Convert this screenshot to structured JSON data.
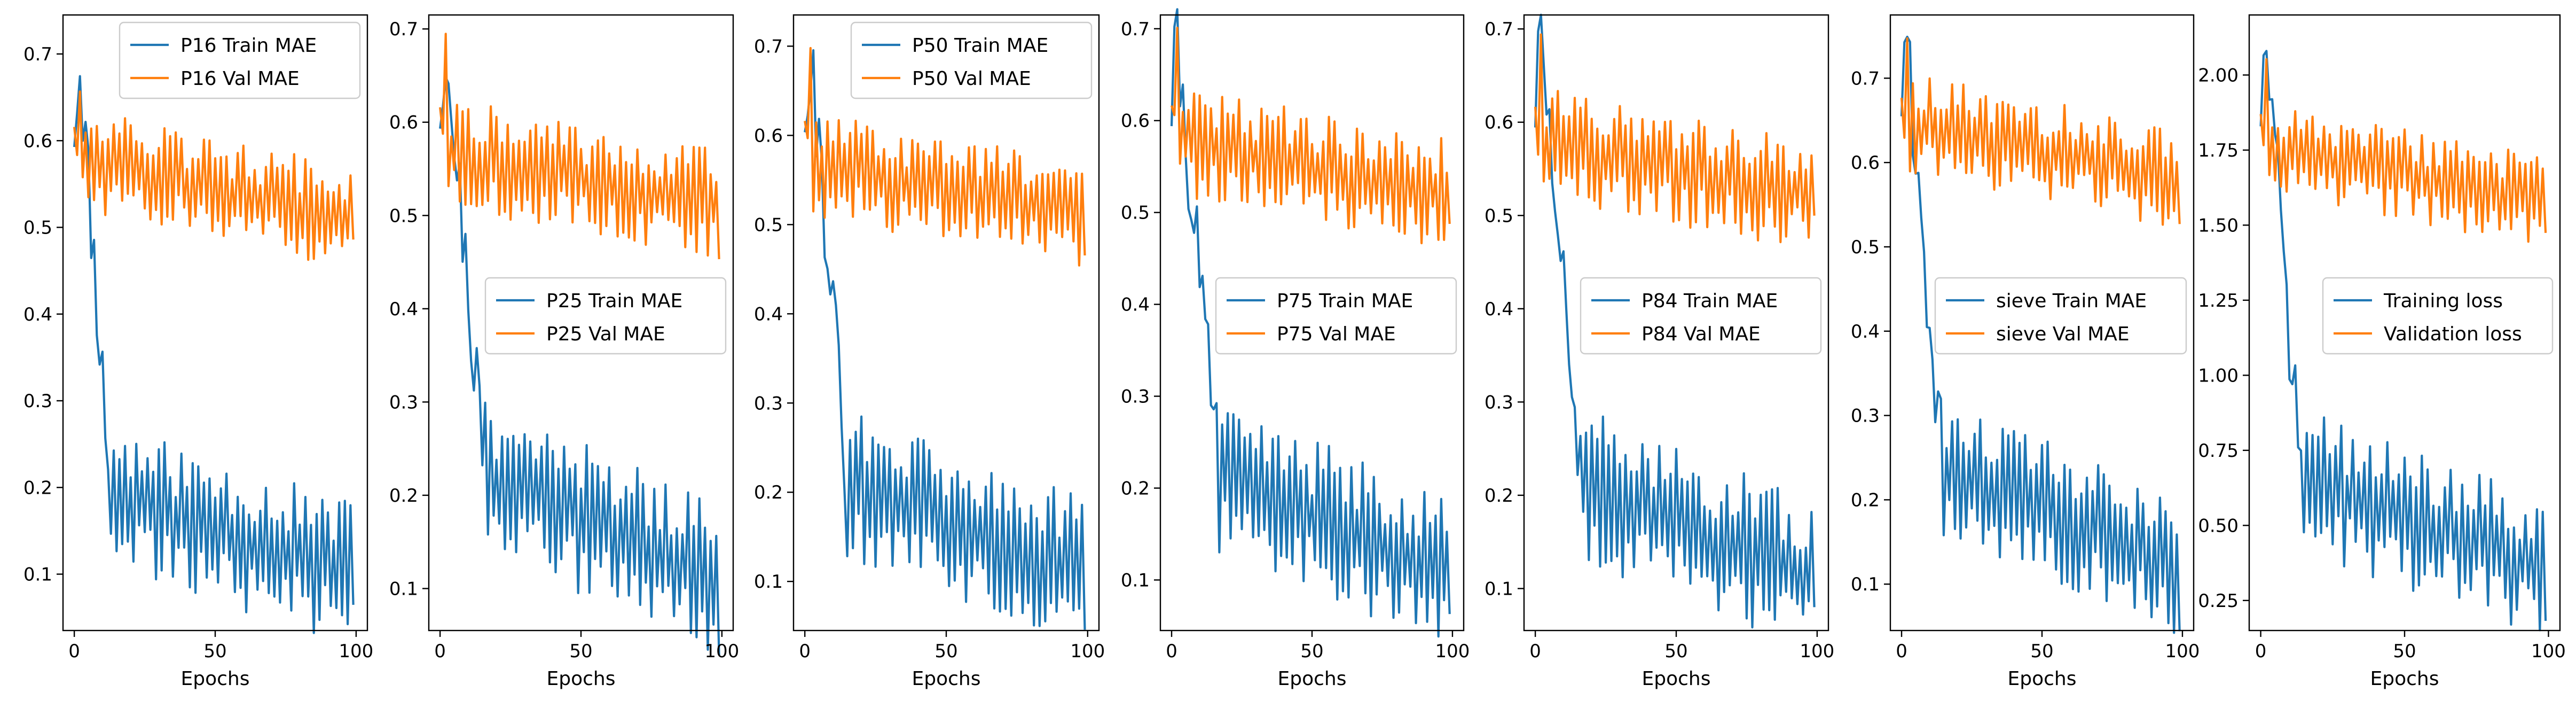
{
  "colors": {
    "train": "#1f77b4",
    "val": "#ff7f0e"
  },
  "chart_data": [
    {
      "type": "line",
      "xlabel": "Epochs",
      "ylabel": "",
      "xlim": [
        -4,
        104
      ],
      "ylim": [
        0.035,
        0.745
      ],
      "xticks": [
        0,
        50,
        100
      ],
      "yticks": [
        0.1,
        0.2,
        0.3,
        0.4,
        0.5,
        0.6,
        0.7
      ],
      "legend_position": "upper right",
      "series": [
        {
          "name": "P16 Train MAE",
          "color": "#1f77b4",
          "start": 0.62,
          "peak": 0.69,
          "drop_epoch": 13,
          "mid": 0.19,
          "end": 0.1,
          "amp": 0.07,
          "seed": 11
        },
        {
          "name": "P16 Val MAE",
          "color": "#ff7f0e",
          "start": 0.59,
          "peak": 0.64,
          "drop_epoch": 0,
          "mid": 0.58,
          "end": 0.51,
          "amp": 0.05,
          "seed": 12
        }
      ]
    },
    {
      "type": "line",
      "xlabel": "Epochs",
      "ylabel": "",
      "xlim": [
        -4,
        104
      ],
      "ylim": [
        0.055,
        0.715
      ],
      "xticks": [
        0,
        50,
        100
      ],
      "yticks": [
        0.1,
        0.2,
        0.3,
        0.4,
        0.5,
        0.6,
        0.7
      ],
      "legend_position": "center right",
      "series": [
        {
          "name": "P25 Train MAE",
          "color": "#1f77b4",
          "start": 0.62,
          "peak": 0.68,
          "drop_epoch": 16,
          "mid": 0.22,
          "end": 0.11,
          "amp": 0.07,
          "seed": 21
        },
        {
          "name": "P25 Val MAE",
          "color": "#ff7f0e",
          "start": 0.59,
          "peak": 0.64,
          "drop_epoch": 0,
          "mid": 0.57,
          "end": 0.51,
          "amp": 0.05,
          "seed": 22
        }
      ]
    },
    {
      "type": "line",
      "xlabel": "Epochs",
      "ylabel": "",
      "xlim": [
        -4,
        104
      ],
      "ylim": [
        0.045,
        0.735
      ],
      "xticks": [
        0,
        50,
        100
      ],
      "yticks": [
        0.1,
        0.2,
        0.3,
        0.4,
        0.5,
        0.6,
        0.7
      ],
      "legend_position": "upper right",
      "series": [
        {
          "name": "P50 Train MAE",
          "color": "#1f77b4",
          "start": 0.63,
          "peak": 0.7,
          "drop_epoch": 15,
          "mid": 0.21,
          "end": 0.11,
          "amp": 0.07,
          "seed": 31
        },
        {
          "name": "P50 Val MAE",
          "color": "#ff7f0e",
          "start": 0.59,
          "peak": 0.65,
          "drop_epoch": 0,
          "mid": 0.57,
          "end": 0.51,
          "amp": 0.05,
          "seed": 32
        }
      ]
    },
    {
      "type": "line",
      "xlabel": "Epochs",
      "ylabel": "",
      "xlim": [
        -4,
        104
      ],
      "ylim": [
        0.045,
        0.715
      ],
      "xticks": [
        0,
        50,
        100
      ],
      "yticks": [
        0.1,
        0.2,
        0.3,
        0.4,
        0.5,
        0.6,
        0.7
      ],
      "legend_position": "center right",
      "series": [
        {
          "name": "P75 Train MAE",
          "color": "#1f77b4",
          "start": 0.62,
          "peak": 0.68,
          "drop_epoch": 17,
          "mid": 0.21,
          "end": 0.11,
          "amp": 0.07,
          "seed": 41
        },
        {
          "name": "P75 Val MAE",
          "color": "#ff7f0e",
          "start": 0.59,
          "peak": 0.66,
          "drop_epoch": 0,
          "mid": 0.58,
          "end": 0.52,
          "amp": 0.05,
          "seed": 42
        }
      ]
    },
    {
      "type": "line",
      "xlabel": "Epochs",
      "ylabel": "",
      "xlim": [
        -4,
        104
      ],
      "ylim": [
        0.055,
        0.715
      ],
      "xticks": [
        0,
        50,
        100
      ],
      "yticks": [
        0.1,
        0.2,
        0.3,
        0.4,
        0.5,
        0.6,
        0.7
      ],
      "legend_position": "center right",
      "series": [
        {
          "name": "P84 Train MAE",
          "color": "#1f77b4",
          "start": 0.62,
          "peak": 0.69,
          "drop_epoch": 16,
          "mid": 0.21,
          "end": 0.11,
          "amp": 0.07,
          "seed": 51
        },
        {
          "name": "P84 Val MAE",
          "color": "#ff7f0e",
          "start": 0.59,
          "peak": 0.66,
          "drop_epoch": 0,
          "mid": 0.58,
          "end": 0.52,
          "amp": 0.05,
          "seed": 52
        }
      ]
    },
    {
      "type": "line",
      "xlabel": "Epochs",
      "ylabel": "",
      "xlim": [
        -4,
        104
      ],
      "ylim": [
        0.045,
        0.775
      ],
      "xticks": [
        0,
        50,
        100
      ],
      "yticks": [
        0.1,
        0.2,
        0.3,
        0.4,
        0.5,
        0.6,
        0.7
      ],
      "legend_position": "center right",
      "series": [
        {
          "name": "sieve Train MAE",
          "color": "#1f77b4",
          "start": 0.68,
          "peak": 0.74,
          "drop_epoch": 14,
          "mid": 0.24,
          "end": 0.12,
          "amp": 0.07,
          "seed": 61
        },
        {
          "name": "sieve Val MAE",
          "color": "#ff7f0e",
          "start": 0.65,
          "peak": 0.72,
          "drop_epoch": 0,
          "mid": 0.65,
          "end": 0.58,
          "amp": 0.05,
          "seed": 62
        }
      ]
    },
    {
      "type": "line",
      "xlabel": "Epochs",
      "ylabel": "",
      "xlim": [
        -4,
        104
      ],
      "ylim": [
        0.15,
        2.2
      ],
      "xticks": [
        0,
        50,
        100
      ],
      "yticks": [
        0.25,
        0.5,
        0.75,
        1.0,
        1.25,
        1.5,
        1.75,
        2.0
      ],
      "ytick_labels": [
        "0.25",
        "0.50",
        "0.75",
        "1.00",
        "1.25",
        "1.50",
        "1.75",
        "2.00"
      ],
      "legend_position": "center right",
      "series": [
        {
          "name": "Training loss",
          "color": "#1f77b4",
          "start": 1.9,
          "peak": 2.1,
          "drop_epoch": 14,
          "mid": 0.65,
          "end": 0.35,
          "amp": 0.2,
          "seed": 71
        },
        {
          "name": "Validation loss",
          "color": "#ff7f0e",
          "start": 1.8,
          "peak": 2.0,
          "drop_epoch": 0,
          "mid": 1.75,
          "end": 1.58,
          "amp": 0.13,
          "seed": 72
        }
      ]
    }
  ]
}
